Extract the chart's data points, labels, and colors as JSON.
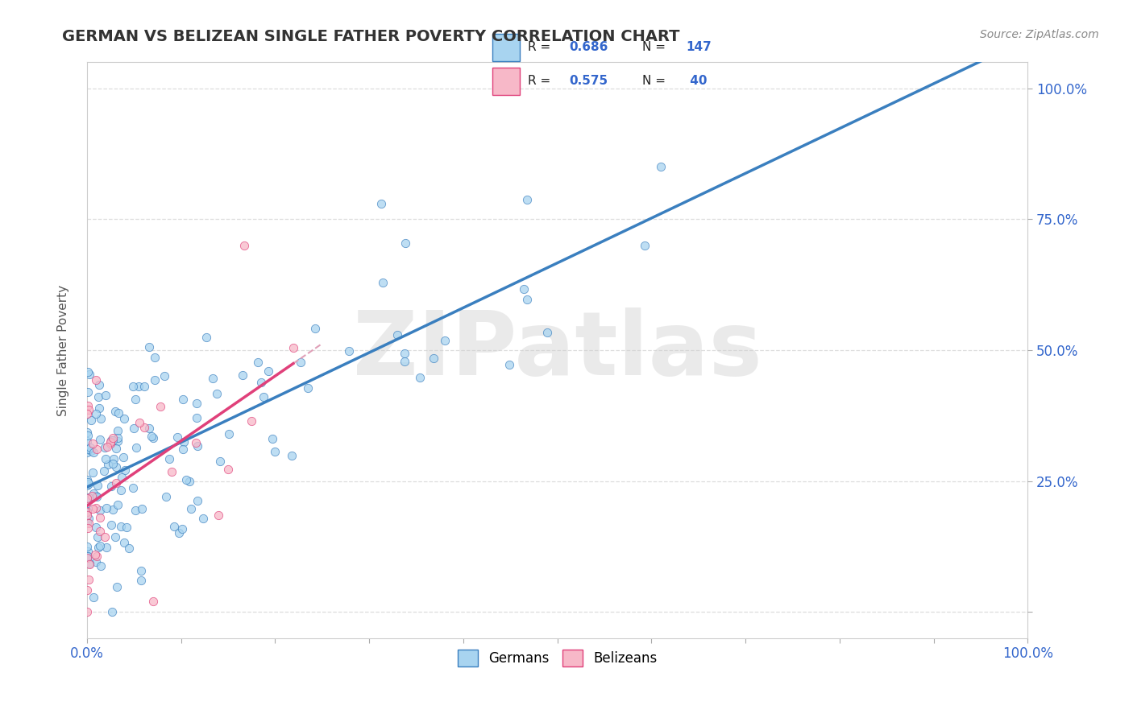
{
  "title": "GERMAN VS BELIZEAN SINGLE FATHER POVERTY CORRELATION CHART",
  "source": "Source: ZipAtlas.com",
  "ylabel": "Single Father Poverty",
  "german_R": 0.686,
  "german_N": 147,
  "belizean_R": 0.575,
  "belizean_N": 40,
  "german_color": "#a8d4f0",
  "belizean_color": "#f7b8c8",
  "german_line_color": "#3a7fbf",
  "belizean_line_color": "#e0407a",
  "belizean_line_dashed_color": "#e0a0b8",
  "watermark": "ZIPatlas",
  "watermark_color": "#cccccc",
  "background_color": "#ffffff",
  "grid_color": "#dddddd",
  "title_color": "#333333",
  "legend_text_color": "#3366cc",
  "xlim": [
    0.0,
    1.0
  ],
  "ylim": [
    -0.05,
    1.05
  ],
  "ytick_positions": [
    0.0,
    0.25,
    0.5,
    0.75,
    1.0
  ],
  "right_ytick_labels": [
    "",
    "25.0%",
    "50.0%",
    "75.0%",
    "100.0%"
  ],
  "xtick_positions": [
    0.0,
    0.1,
    0.2,
    0.3,
    0.4,
    0.5,
    0.6,
    0.7,
    0.8,
    0.9,
    1.0
  ],
  "bottom_xlabels_left": "0.0%",
  "bottom_xlabels_right": "100.0%"
}
